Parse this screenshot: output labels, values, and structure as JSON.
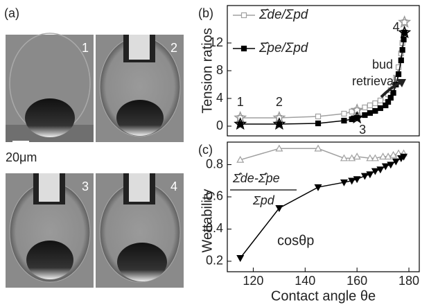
{
  "figure": {
    "panel_label": "(a)",
    "images": [
      "1",
      "2",
      "3",
      "4"
    ],
    "scale_bar": "20μm"
  },
  "chart_data": [
    {
      "type": "line",
      "panel_label": "(b)",
      "ylabel": "Tension ratios",
      "xlim": [
        110,
        184
      ],
      "ylim": [
        -1.4,
        17.4
      ],
      "yticks": [
        0,
        4,
        8,
        12
      ],
      "annotations": [
        "1",
        "2",
        "3",
        "4",
        "bud",
        "retrieval"
      ],
      "series": [
        {
          "name": "Σ̂de/Σpd",
          "color": "#a0a0a0",
          "marker": "square-open",
          "x": [
            115,
            130,
            145,
            155,
            158,
            160,
            163,
            165,
            167,
            169,
            171,
            172,
            173,
            174,
            175,
            176,
            177,
            177.5,
            178,
            178.3
          ],
          "values": [
            1.2,
            1.2,
            1.4,
            1.8,
            2.1,
            2.3,
            2.7,
            3.0,
            3.3,
            3.7,
            4.1,
            4.6,
            5.2,
            5.8,
            7,
            8.5,
            10.5,
            12,
            13.5,
            15
          ]
        },
        {
          "name": "Σ̂pe/Σpd",
          "color": "#000000",
          "marker": "square-filled",
          "x": [
            115,
            130,
            145,
            155,
            158,
            160,
            163,
            165,
            167,
            169,
            171,
            172,
            173,
            174,
            175,
            176,
            177,
            177.5,
            178,
            178.3
          ],
          "values": [
            0.3,
            0.3,
            0.4,
            0.8,
            1.0,
            1.2,
            1.6,
            1.9,
            2.2,
            2.6,
            3.0,
            3.5,
            4.1,
            4.8,
            6,
            7.5,
            9.5,
            11,
            12.5,
            13.5
          ]
        }
      ]
    },
    {
      "type": "line",
      "panel_label": "(c)",
      "ylabel": "Wettability",
      "xlabel": "Contact angle θe",
      "xlim": [
        110,
        184
      ],
      "xticks": [
        120,
        140,
        160,
        180
      ],
      "ylim": [
        0.135,
        0.94
      ],
      "yticks": [
        0.2,
        0.4,
        0.6,
        0.8
      ],
      "annotations": [
        "Σ̂de-Σ̂pe",
        "Σpd",
        "cosθp"
      ],
      "series": [
        {
          "color": "#a0a0a0",
          "marker": "triangle-open",
          "x": [
            115,
            130,
            145,
            155,
            158,
            160,
            165,
            167,
            170,
            172,
            174,
            176,
            178
          ],
          "values": [
            0.83,
            0.9,
            0.9,
            0.84,
            0.84,
            0.85,
            0.84,
            0.84,
            0.85,
            0.85,
            0.86,
            0.87,
            0.87
          ]
        },
        {
          "color": "#000000",
          "marker": "triangle-down-filled",
          "x": [
            115,
            130,
            145,
            155,
            158,
            160,
            163,
            165,
            167,
            169,
            171,
            173,
            175,
            177,
            178
          ],
          "values": [
            0.22,
            0.53,
            0.66,
            0.69,
            0.7,
            0.71,
            0.73,
            0.74,
            0.76,
            0.77,
            0.79,
            0.8,
            0.82,
            0.84,
            0.85
          ]
        }
      ]
    }
  ]
}
